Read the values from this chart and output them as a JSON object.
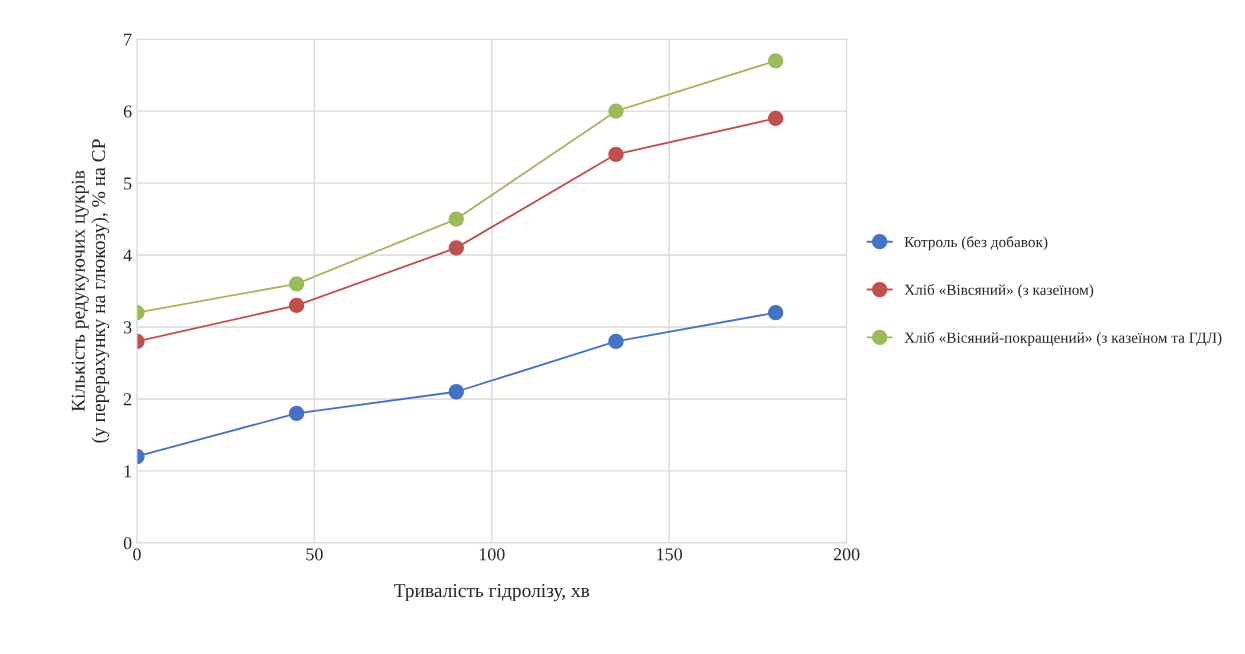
{
  "chart_data": {
    "type": "line",
    "xlabel": "Тривалість гідролізу, хв",
    "ylabel": "Кількість редукуючих цукрів\n(у перерахунку на глюкозу), % на СР",
    "x": [
      0,
      45,
      90,
      135,
      180
    ],
    "series": [
      {
        "name": "Котроль (без добавок)",
        "color": "#4472c4",
        "values": [
          1.2,
          1.8,
          2.1,
          2.8,
          3.2
        ]
      },
      {
        "name": "Хліб «Вівсяний» (з казеїном)",
        "color": "#c0504d",
        "values": [
          2.8,
          3.3,
          4.1,
          5.4,
          5.9
        ]
      },
      {
        "name": "Хліб «Вісяний-покращений» (з казеїном та ГДЛ)",
        "color": "#9bbb59",
        "values": [
          3.2,
          3.6,
          4.5,
          6.0,
          6.7
        ]
      }
    ],
    "xlim": [
      0,
      200
    ],
    "xticks": [
      0,
      50,
      100,
      150,
      200
    ],
    "ylim": [
      0,
      7
    ],
    "yticks": [
      0,
      1,
      2,
      3,
      4,
      5,
      6,
      7
    ],
    "grid": true,
    "legend": "right",
    "marker": "circle",
    "line_style": "solid"
  }
}
